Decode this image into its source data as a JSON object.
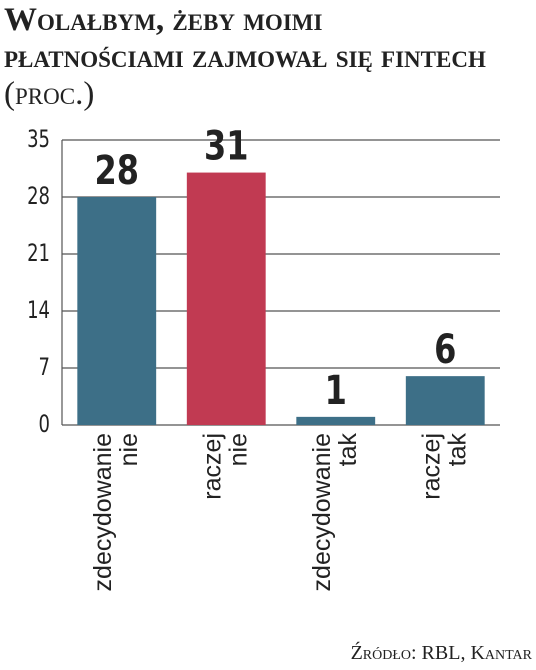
{
  "chart_data": {
    "type": "bar",
    "title": "Wolałbym, żeby moimi płatnościami zajmował się fintech",
    "subtitle": "(proc.)",
    "categories": [
      "zdecydowanie nie",
      "raczej nie",
      "zdecydowanie tak",
      "raczej tak"
    ],
    "values": [
      28,
      31,
      1,
      6
    ],
    "colors": [
      "#3d6f87",
      "#c13a52",
      "#3d6f87",
      "#3d6f87"
    ],
    "ylim": [
      0,
      35
    ],
    "yticks": [
      0,
      7,
      14,
      21,
      28,
      35
    ],
    "grid": true,
    "source": "Źródło: RBL, Kantar"
  }
}
